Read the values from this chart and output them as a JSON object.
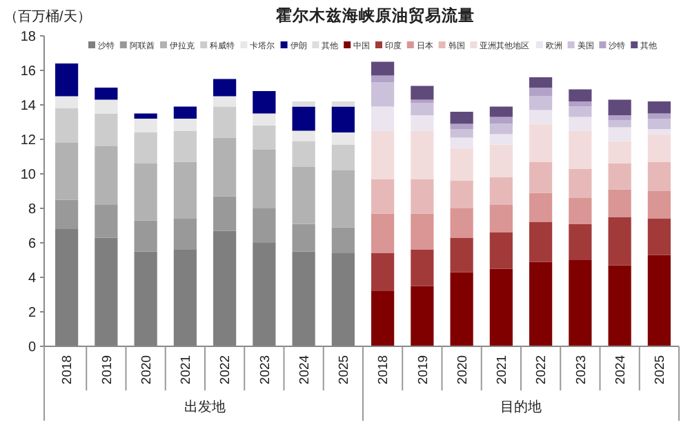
{
  "chart_data": {
    "type": "bar",
    "stacked": true,
    "title": "霍尔木兹海峡原油贸易流量",
    "ylabel": "（百万桶/天）",
    "categories": [
      "2018",
      "2019",
      "2020",
      "2021",
      "2022",
      "2023",
      "2024",
      "2025",
      "2018",
      "2019",
      "2020",
      "2021",
      "2022",
      "2023",
      "2024",
      "2025"
    ],
    "annotations": [
      "出发地",
      "目的地"
    ],
    "ylim": [
      0,
      18
    ],
    "yticks": [
      0,
      2,
      4,
      6,
      8,
      10,
      12,
      14,
      16,
      18
    ],
    "grid": false,
    "legend": "top",
    "series": [
      {
        "name": "沙特",
        "color": "#7f7f7f",
        "values": [
          6.8,
          6.3,
          5.5,
          5.6,
          6.7,
          6.0,
          5.5,
          5.4,
          null,
          null,
          null,
          null,
          null,
          null,
          null,
          null
        ]
      },
      {
        "name": "阿联酋",
        "color": "#999999",
        "values": [
          1.7,
          1.9,
          1.8,
          1.8,
          2.0,
          2.0,
          1.6,
          1.5,
          null,
          null,
          null,
          null,
          null,
          null,
          null,
          null
        ]
      },
      {
        "name": "伊拉克",
        "color": "#b2b2b2",
        "values": [
          3.3,
          3.4,
          3.3,
          3.3,
          3.4,
          3.4,
          3.3,
          3.3,
          null,
          null,
          null,
          null,
          null,
          null,
          null,
          null
        ]
      },
      {
        "name": "科威特",
        "color": "#cccccc",
        "values": [
          2.0,
          1.9,
          1.8,
          1.8,
          1.8,
          1.4,
          1.5,
          1.5,
          null,
          null,
          null,
          null,
          null,
          null,
          null,
          null
        ]
      },
      {
        "name": "卡塔尔",
        "color": "#e8e8e8",
        "values": [
          0.7,
          0.8,
          0.8,
          0.7,
          0.6,
          0.7,
          0.6,
          0.7,
          null,
          null,
          null,
          null,
          null,
          null,
          null,
          null
        ]
      },
      {
        "name": "伊朗",
        "color": "#000080",
        "values": [
          1.9,
          0.7,
          0.3,
          0.7,
          1.0,
          1.3,
          1.4,
          1.5,
          null,
          null,
          null,
          null,
          null,
          null,
          null,
          null
        ]
      },
      {
        "name": "其他",
        "color": "#dddddd",
        "values": [
          0,
          0,
          0,
          0,
          0,
          0,
          0.3,
          0.3,
          null,
          null,
          null,
          null,
          null,
          null,
          null,
          null
        ]
      },
      {
        "name": "中国",
        "color": "#800000",
        "values": [
          null,
          null,
          null,
          null,
          null,
          null,
          null,
          null,
          3.2,
          3.5,
          4.3,
          4.5,
          4.9,
          5.0,
          4.7,
          5.3
        ]
      },
      {
        "name": "印度",
        "color": "#a33a3a",
        "values": [
          null,
          null,
          null,
          null,
          null,
          null,
          null,
          null,
          2.2,
          2.1,
          2.0,
          2.1,
          2.3,
          2.1,
          2.8,
          2.1
        ]
      },
      {
        "name": "日本",
        "color": "#d99694",
        "values": [
          null,
          null,
          null,
          null,
          null,
          null,
          null,
          null,
          2.3,
          2.1,
          1.7,
          1.6,
          1.7,
          1.5,
          1.6,
          1.6
        ]
      },
      {
        "name": "韩国",
        "color": "#e6b9b8",
        "values": [
          null,
          null,
          null,
          null,
          null,
          null,
          null,
          null,
          2.0,
          2.0,
          1.6,
          1.6,
          1.8,
          1.7,
          1.5,
          1.7
        ]
      },
      {
        "name": "亚洲其他地区",
        "color": "#f2dcdb",
        "values": [
          null,
          null,
          null,
          null,
          null,
          null,
          null,
          null,
          2.8,
          2.8,
          1.9,
          1.9,
          2.2,
          2.2,
          1.3,
          1.6
        ]
      },
      {
        "name": "欧洲",
        "color": "#ebe5f0",
        "values": [
          null,
          null,
          null,
          null,
          null,
          null,
          null,
          null,
          1.4,
          0.9,
          0.6,
          0.6,
          0.8,
          0.8,
          0.8,
          0.3
        ]
      },
      {
        "name": "美国",
        "color": "#ccc1da",
        "values": [
          null,
          null,
          null,
          null,
          null,
          null,
          null,
          null,
          1.4,
          0.7,
          0.5,
          0.6,
          0.8,
          0.6,
          0.4,
          0.6
        ]
      },
      {
        "name": "沙特",
        "color": "#b3a2c7",
        "values": [
          null,
          null,
          null,
          null,
          null,
          null,
          null,
          null,
          0.4,
          0.2,
          0.3,
          0.4,
          0.5,
          0.3,
          0.3,
          0.3
        ]
      },
      {
        "name": "其他",
        "color": "#604a7b",
        "values": [
          null,
          null,
          null,
          null,
          null,
          null,
          null,
          null,
          0.8,
          0.8,
          0.7,
          0.6,
          0.6,
          0.7,
          0.9,
          0.7
        ]
      }
    ]
  }
}
